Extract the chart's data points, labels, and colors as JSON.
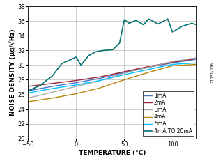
{
  "xlabel": "TEMPERATURE (°C)",
  "ylabel": "NOISE DENSITY (μg/√Hz)",
  "xlim": [
    -50,
    125
  ],
  "ylim": [
    20,
    38
  ],
  "xticks": [
    -50,
    0,
    50,
    100
  ],
  "yticks": [
    20,
    22,
    24,
    26,
    28,
    30,
    32,
    34,
    36,
    38
  ],
  "background_color": "#ffffff",
  "series": {
    "1mA": {
      "x": [
        -50,
        -25,
        0,
        25,
        50,
        75,
        100,
        125
      ],
      "y": [
        26.5,
        27.1,
        27.6,
        28.2,
        29.0,
        29.7,
        30.3,
        30.8
      ],
      "color": "#4472C4",
      "linewidth": 1.0
    },
    "2mA": {
      "x": [
        -50,
        -25,
        0,
        25,
        50,
        75,
        100,
        125
      ],
      "y": [
        27.1,
        27.5,
        27.9,
        28.4,
        29.1,
        29.8,
        30.4,
        30.9
      ],
      "color": "#9B2335",
      "linewidth": 1.0
    },
    "3mA": {
      "x": [
        -50,
        -25,
        0,
        25,
        50,
        75,
        100,
        125
      ],
      "y": [
        25.5,
        26.3,
        27.1,
        27.9,
        28.9,
        29.7,
        30.5,
        31.0
      ],
      "color": "#A9A9A9",
      "linewidth": 1.0
    },
    "4mA": {
      "x": [
        -50,
        -25,
        0,
        25,
        50,
        75,
        100,
        125
      ],
      "y": [
        25.0,
        25.5,
        26.1,
        26.9,
        28.0,
        29.0,
        29.9,
        30.1
      ],
      "color": "#B8860B",
      "linewidth": 1.0
    },
    "5mA": {
      "x": [
        -50,
        -25,
        0,
        25,
        50,
        75,
        100,
        125
      ],
      "y": [
        26.2,
        26.8,
        27.3,
        27.9,
        28.7,
        29.4,
        30.1,
        30.3
      ],
      "color": "#00BFFF",
      "linewidth": 1.0
    },
    "4mA TO 20mA": {
      "x": [
        -50,
        -38,
        -25,
        -15,
        0,
        5,
        13,
        20,
        28,
        38,
        45,
        50,
        55,
        62,
        70,
        75,
        85,
        95,
        100,
        110,
        120,
        125
      ],
      "y": [
        26.5,
        27.2,
        28.5,
        30.2,
        31.1,
        30.0,
        31.3,
        31.8,
        32.0,
        32.1,
        33.0,
        36.2,
        35.7,
        36.1,
        35.5,
        36.3,
        35.6,
        36.3,
        34.5,
        35.3,
        35.7,
        35.5
      ],
      "color": "#007070",
      "linewidth": 1.2
    }
  },
  "legend_order": [
    "1mA",
    "2mA",
    "3mA",
    "4mA",
    "5mA",
    "4mA TO 20mA"
  ],
  "fig_number": "21031-006",
  "tick_fontsize": 6,
  "label_fontsize": 6.5,
  "legend_fontsize": 5.5
}
